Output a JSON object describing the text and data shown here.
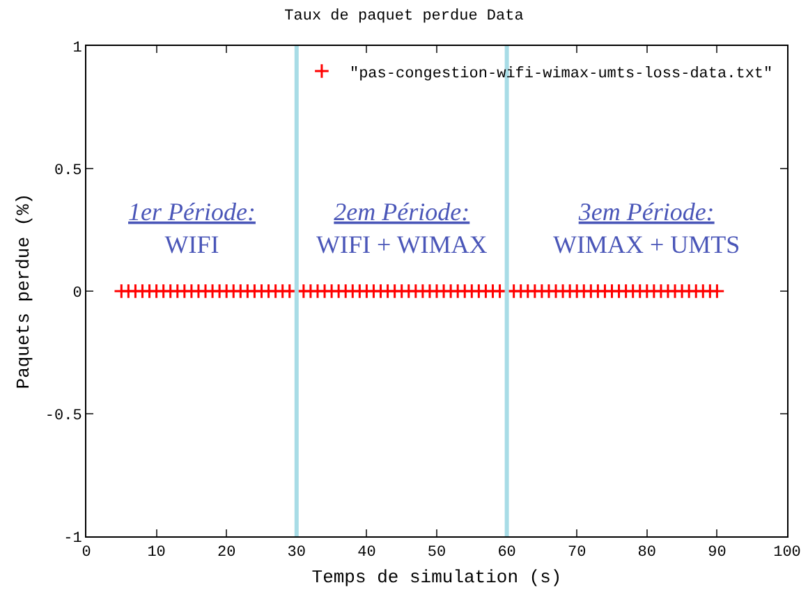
{
  "chart_data": {
    "type": "scatter",
    "title": "Taux de paquet perdue Data",
    "xlabel": "Temps de simulation (s)",
    "ylabel": "Paquets perdue (%)",
    "xlim": [
      0,
      100
    ],
    "xticks": [
      0,
      10,
      20,
      30,
      40,
      50,
      60,
      70,
      80,
      90,
      100
    ],
    "ylim": [
      -1,
      1
    ],
    "yticks": [
      -1,
      -0.5,
      0,
      0.5,
      1
    ],
    "grid": false,
    "legend": "top right",
    "marker": "cross",
    "series": [
      {
        "name": "\"pas-congestion-wifi-wimax-umts-loss-data.txt\"",
        "color": "#ff0000",
        "x": [
          5,
          6,
          7,
          8,
          9,
          10,
          11,
          12,
          13,
          14,
          15,
          16,
          17,
          18,
          19,
          20,
          21,
          22,
          23,
          24,
          25,
          26,
          27,
          28,
          29,
          30,
          31,
          32,
          33,
          34,
          35,
          36,
          37,
          38,
          39,
          40,
          41,
          42,
          43,
          44,
          45,
          46,
          47,
          48,
          49,
          50,
          51,
          52,
          53,
          54,
          55,
          56,
          57,
          58,
          59,
          60,
          61,
          62,
          63,
          64,
          65,
          66,
          67,
          68,
          69,
          70,
          71,
          72,
          73,
          74,
          75,
          76,
          77,
          78,
          79,
          80,
          81,
          82,
          83,
          84,
          85,
          86,
          87,
          88,
          89,
          90
        ],
        "values": [
          0,
          0,
          0,
          0,
          0,
          0,
          0,
          0,
          0,
          0,
          0,
          0,
          0,
          0,
          0,
          0,
          0,
          0,
          0,
          0,
          0,
          0,
          0,
          0,
          0,
          0,
          0,
          0,
          0,
          0,
          0,
          0,
          0,
          0,
          0,
          0,
          0,
          0,
          0,
          0,
          0,
          0,
          0,
          0,
          0,
          0,
          0,
          0,
          0,
          0,
          0,
          0,
          0,
          0,
          0,
          0,
          0,
          0,
          0,
          0,
          0,
          0,
          0,
          0,
          0,
          0,
          0,
          0,
          0,
          0,
          0,
          0,
          0,
          0,
          0,
          0,
          0,
          0,
          0,
          0,
          0,
          0,
          0,
          0,
          0,
          0
        ]
      }
    ],
    "ref_lines": [
      {
        "axis": "x",
        "value": 30,
        "color": "#a8dce6"
      },
      {
        "axis": "x",
        "value": 60,
        "color": "#a8dce6"
      }
    ],
    "annotations": [
      "1er Période:\nWIFI",
      "2em Période:\nWIFI + WIMAX",
      "3em Période:\nWIMAX + UMTS"
    ]
  }
}
